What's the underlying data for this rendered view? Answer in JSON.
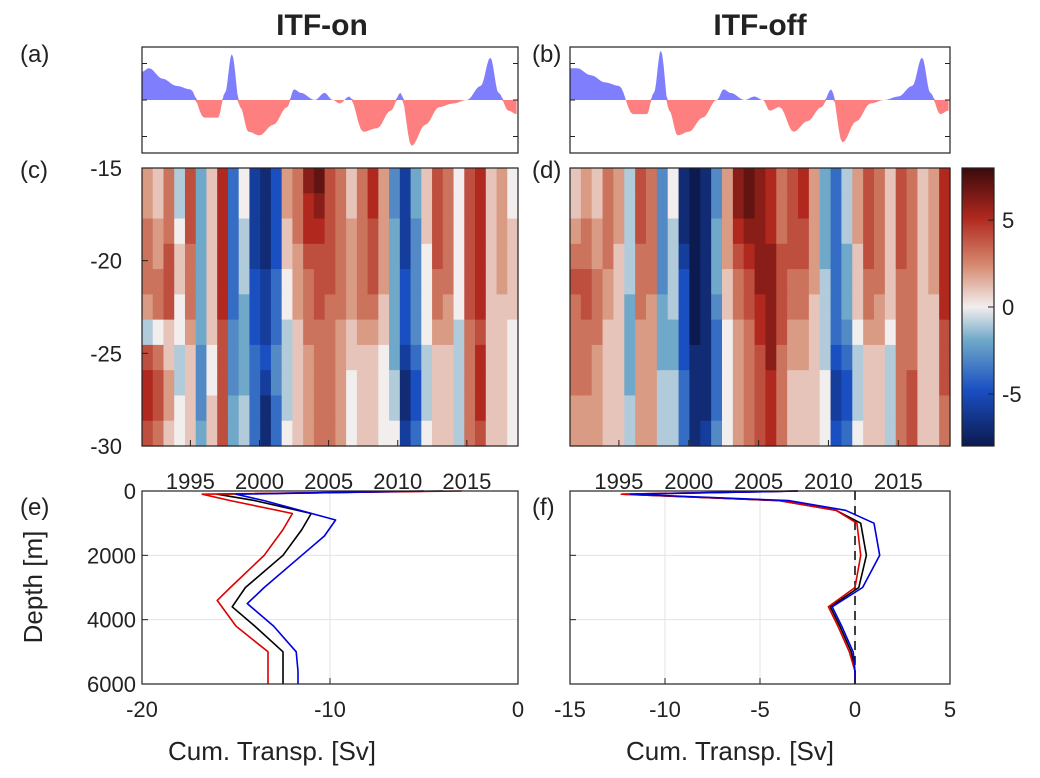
{
  "figure": {
    "titles": [
      "ITF-on",
      "ITF-off"
    ],
    "panel_labels": [
      "(a)",
      "(b)",
      "(c)",
      "(d)",
      "(e)",
      "(f)"
    ],
    "colors": {
      "positive_fill": "#7f7ffe",
      "negative_fill": "#fd7f7f",
      "series_black": "#000000",
      "series_red": "#dd0000",
      "series_blue": "#0000dd"
    }
  },
  "chart_data": [
    {
      "panel": "a",
      "type": "area",
      "title": "ITF-on",
      "x": [
        1991.5,
        1992,
        1993,
        1994,
        1995,
        1996,
        1997,
        1997.5,
        1998,
        1998.6,
        1999.2,
        2000,
        2001,
        2002,
        2002.5,
        2003,
        2004,
        2004.7,
        2005.3,
        2005.8,
        2006.5,
        2007.5,
        2008.5,
        2009.5,
        2010.2,
        2011,
        2012,
        2013,
        2014,
        2015,
        2016,
        2016.7,
        2017.3,
        2018,
        2018.6
      ],
      "values": [
        0.8,
        0.9,
        0.6,
        0.4,
        0.3,
        -0.5,
        -0.5,
        0.2,
        1.3,
        -0.2,
        -0.9,
        -1.0,
        -0.7,
        -0.2,
        0.3,
        0.2,
        0.0,
        0.2,
        0.0,
        -0.1,
        0.1,
        -0.9,
        -0.8,
        -0.3,
        0.2,
        -1.3,
        -0.7,
        -0.2,
        -0.1,
        0.0,
        0.4,
        1.2,
        0.2,
        -0.3,
        -0.4
      ],
      "ylim": [
        -1.5,
        1.5
      ],
      "xlim": [
        1991.5,
        2018.7
      ]
    },
    {
      "panel": "b",
      "type": "area",
      "title": "ITF-off",
      "x": [
        1991.5,
        1992,
        1993,
        1994,
        1995,
        1996,
        1997,
        1997.5,
        1998,
        1998.6,
        1999.2,
        2000,
        2001,
        2002,
        2002.5,
        2003,
        2004,
        2004.7,
        2005.3,
        2005.8,
        2006.5,
        2007.5,
        2008.5,
        2009.5,
        2010.2,
        2011,
        2012,
        2013,
        2014,
        2015,
        2016,
        2016.7,
        2017.3,
        2018,
        2018.6
      ],
      "values": [
        0.9,
        0.9,
        0.7,
        0.5,
        0.4,
        -0.4,
        -0.4,
        0.2,
        1.4,
        -0.3,
        -1.0,
        -0.9,
        -0.5,
        0.0,
        0.3,
        0.2,
        0.0,
        0.1,
        0.0,
        -0.3,
        -0.2,
        -0.9,
        -0.6,
        -0.2,
        0.3,
        -1.2,
        -0.6,
        -0.1,
        0.0,
        0.1,
        0.4,
        1.2,
        0.2,
        -0.4,
        -0.3
      ],
      "ylim": [
        -1.5,
        1.5
      ],
      "xlim": [
        1991.5,
        2018.7
      ]
    },
    {
      "panel": "c",
      "type": "heatmap",
      "xlim": [
        1991.5,
        2018.7
      ],
      "ylim": [
        -30,
        -15
      ],
      "xticks": [
        1995,
        2000,
        2005,
        2010,
        2015
      ],
      "yticks": [
        -15,
        -20,
        -25,
        -30
      ],
      "x": [
        1991.5,
        1992.2,
        1993,
        1993.8,
        1994.6,
        1995.4,
        1996.2,
        1997,
        1997.8,
        1998.6,
        1999.4,
        2000.2,
        2001,
        2001.8,
        2002.6,
        2003.4,
        2004.2,
        2005,
        2005.8,
        2006.6,
        2007.4,
        2008.2,
        2009,
        2009.8,
        2010.6,
        2011.4,
        2012.2,
        2013,
        2013.8,
        2014.6,
        2015.4,
        2016.2,
        2017,
        2017.8,
        2018.6
      ],
      "y": [
        -15,
        -16.5,
        -18,
        -19.5,
        -21,
        -22.5,
        -24,
        -25.5,
        -27,
        -28.5,
        -30
      ],
      "z": [
        [
          2,
          1,
          3,
          -1,
          4,
          -2,
          1,
          5,
          -4,
          0,
          -6,
          -7,
          -5,
          2,
          3,
          6,
          7,
          4,
          3,
          1,
          3,
          5,
          2,
          -3,
          -6,
          -2,
          1,
          4,
          3,
          0,
          4,
          5,
          1,
          2,
          0
        ],
        [
          2,
          1,
          3,
          -1,
          4,
          -2,
          1,
          5,
          -4,
          0,
          -6,
          -7,
          -5,
          2,
          3,
          5,
          6,
          4,
          3,
          1,
          3,
          5,
          2,
          -3,
          -6,
          -2,
          1,
          4,
          3,
          0,
          4,
          5,
          1,
          2,
          0
        ],
        [
          3,
          2,
          3,
          0,
          4,
          -2,
          1,
          5,
          -4,
          -1,
          -6,
          -7,
          -5,
          1,
          3,
          5,
          5,
          4,
          3,
          2,
          3,
          4,
          2,
          -2,
          -6,
          -3,
          1,
          4,
          3,
          0,
          4,
          5,
          1,
          2,
          1
        ],
        [
          3,
          2,
          4,
          1,
          3,
          -2,
          1,
          5,
          -4,
          -1,
          -6,
          -7,
          -5,
          1,
          2,
          4,
          4,
          4,
          3,
          2,
          3,
          4,
          2,
          -2,
          -6,
          -3,
          0,
          4,
          3,
          0,
          4,
          5,
          1,
          2,
          1
        ],
        [
          3,
          3,
          4,
          1,
          3,
          -2,
          1,
          5,
          -4,
          -1,
          -5,
          -6,
          -4,
          0,
          2,
          3,
          4,
          4,
          3,
          2,
          3,
          4,
          2,
          -2,
          -5,
          -3,
          0,
          3,
          3,
          0,
          4,
          5,
          1,
          2,
          1
        ],
        [
          2,
          3,
          4,
          0,
          3,
          -2,
          1,
          5,
          -4,
          -2,
          -5,
          -6,
          -4,
          0,
          2,
          3,
          4,
          3,
          3,
          2,
          3,
          3,
          1,
          -2,
          -5,
          -3,
          0,
          3,
          2,
          0,
          4,
          5,
          1,
          1,
          1
        ],
        [
          -1,
          0,
          1,
          0,
          2,
          -2,
          1,
          4,
          -3,
          -2,
          -5,
          -6,
          -4,
          -1,
          1,
          3,
          3,
          3,
          2,
          1,
          2,
          2,
          1,
          -2,
          -5,
          -3,
          0,
          2,
          2,
          -1,
          3,
          4,
          1,
          1,
          0
        ],
        [
          4,
          3,
          1,
          -1,
          1,
          -3,
          0,
          4,
          -3,
          -2,
          -4,
          -5,
          -3,
          -1,
          1,
          2,
          3,
          3,
          2,
          1,
          1,
          1,
          0,
          -2,
          -6,
          -4,
          -1,
          1,
          1,
          -1,
          3,
          5,
          1,
          1,
          0
        ],
        [
          5,
          4,
          2,
          -1,
          1,
          -3,
          0,
          4,
          -3,
          -2,
          -4,
          -6,
          -3,
          -1,
          1,
          2,
          3,
          3,
          2,
          0,
          1,
          1,
          0,
          -1,
          -7,
          -5,
          -1,
          1,
          1,
          -1,
          3,
          5,
          1,
          1,
          0
        ],
        [
          5,
          4,
          2,
          0,
          1,
          -3,
          1,
          4,
          -2,
          -1,
          -4,
          -7,
          -4,
          -1,
          1,
          2,
          3,
          3,
          2,
          0,
          1,
          1,
          0,
          -1,
          -7,
          -5,
          -1,
          1,
          1,
          -1,
          3,
          5,
          1,
          1,
          0
        ],
        [
          4,
          3,
          1,
          0,
          1,
          -2,
          1,
          4,
          -2,
          -1,
          -4,
          -7,
          -4,
          0,
          1,
          2,
          3,
          3,
          2,
          0,
          1,
          1,
          0,
          0,
          -6,
          -4,
          0,
          1,
          1,
          -1,
          3,
          4,
          1,
          1,
          0
        ]
      ]
    },
    {
      "panel": "d",
      "type": "heatmap",
      "xlim": [
        1991.5,
        2018.7
      ],
      "ylim": [
        -30,
        -15
      ],
      "xticks": [
        1995,
        2000,
        2005,
        2010,
        2015
      ],
      "x": [
        1991.5,
        1992.2,
        1993,
        1993.8,
        1994.6,
        1995.4,
        1996.2,
        1997,
        1997.8,
        1998.6,
        1999.4,
        2000.2,
        2001,
        2001.8,
        2002.6,
        2003.4,
        2004.2,
        2005,
        2005.8,
        2006.6,
        2007.4,
        2008.2,
        2009,
        2009.8,
        2010.6,
        2011.4,
        2012.2,
        2013,
        2013.8,
        2014.6,
        2015.4,
        2016.2,
        2017,
        2017.8,
        2018.6
      ],
      "y": [
        -15,
        -16.5,
        -18,
        -19.5,
        -21,
        -22.5,
        -24,
        -25.5,
        -27,
        -28.5,
        -30
      ],
      "z": [
        [
          1,
          2,
          1,
          3,
          2,
          -1,
          4,
          3,
          -3,
          0,
          -7,
          -8,
          -7,
          -3,
          2,
          6,
          7,
          6,
          5,
          3,
          4,
          5,
          2,
          -2,
          -4,
          -1,
          2,
          4,
          3,
          1,
          4,
          3,
          1,
          2,
          5
        ],
        [
          1,
          2,
          1,
          3,
          2,
          -1,
          4,
          3,
          -3,
          0,
          -7,
          -8,
          -7,
          -3,
          2,
          6,
          7,
          6,
          5,
          3,
          4,
          5,
          2,
          -2,
          -4,
          -1,
          2,
          4,
          3,
          1,
          4,
          3,
          1,
          2,
          5
        ],
        [
          2,
          3,
          2,
          3,
          2,
          -1,
          4,
          3,
          -3,
          -1,
          -7,
          -8,
          -7,
          -2,
          2,
          5,
          6,
          6,
          5,
          3,
          4,
          4,
          2,
          -2,
          -4,
          -1,
          2,
          4,
          3,
          1,
          4,
          3,
          1,
          2,
          5
        ],
        [
          3,
          3,
          2,
          3,
          1,
          -1,
          3,
          3,
          -3,
          -1,
          -6,
          -8,
          -7,
          -2,
          2,
          4,
          5,
          6,
          6,
          4,
          4,
          4,
          2,
          -2,
          -4,
          -2,
          1,
          4,
          3,
          1,
          4,
          3,
          1,
          2,
          5
        ],
        [
          4,
          4,
          3,
          2,
          1,
          -1,
          3,
          3,
          -3,
          -1,
          -5,
          -8,
          -7,
          -2,
          1,
          3,
          4,
          6,
          6,
          4,
          3,
          3,
          2,
          -1,
          -4,
          -2,
          1,
          3,
          3,
          1,
          3,
          3,
          1,
          2,
          5
        ],
        [
          3,
          4,
          3,
          2,
          1,
          -2,
          3,
          2,
          -2,
          -1,
          -5,
          -8,
          -7,
          -3,
          1,
          3,
          4,
          5,
          6,
          4,
          3,
          3,
          1,
          -1,
          -4,
          -2,
          1,
          3,
          2,
          1,
          3,
          3,
          1,
          1,
          5
        ],
        [
          3,
          3,
          3,
          1,
          1,
          -2,
          2,
          2,
          -2,
          -2,
          -5,
          -8,
          -7,
          -4,
          0,
          2,
          3,
          5,
          6,
          4,
          2,
          2,
          1,
          -1,
          -4,
          -3,
          0,
          2,
          2,
          0,
          3,
          3,
          1,
          1,
          4
        ],
        [
          3,
          3,
          2,
          1,
          1,
          -2,
          2,
          2,
          -2,
          -2,
          -5,
          -7,
          -7,
          -4,
          0,
          2,
          3,
          4,
          6,
          3,
          2,
          2,
          1,
          -1,
          -5,
          -4,
          -1,
          1,
          1,
          -1,
          3,
          3,
          1,
          1,
          4
        ],
        [
          3,
          3,
          2,
          1,
          1,
          -2,
          2,
          2,
          -1,
          -1,
          -4,
          -7,
          -7,
          -4,
          0,
          2,
          3,
          4,
          5,
          3,
          1,
          1,
          1,
          0,
          -6,
          -5,
          -1,
          1,
          1,
          -1,
          3,
          4,
          1,
          1,
          4
        ],
        [
          2,
          2,
          2,
          1,
          1,
          -1,
          2,
          2,
          -1,
          -1,
          -4,
          -7,
          -7,
          -4,
          0,
          2,
          3,
          4,
          5,
          3,
          1,
          1,
          1,
          0,
          -6,
          -5,
          -1,
          1,
          1,
          -1,
          3,
          4,
          1,
          1,
          3
        ],
        [
          2,
          2,
          2,
          1,
          1,
          -1,
          2,
          2,
          -1,
          -1,
          -4,
          -7,
          -6,
          -3,
          0,
          2,
          3,
          4,
          5,
          3,
          1,
          1,
          1,
          0,
          -5,
          -4,
          0,
          1,
          1,
          -1,
          3,
          4,
          1,
          1,
          3
        ]
      ]
    },
    {
      "panel": "colorbar",
      "type": "heatmap",
      "range": [
        -8,
        8
      ],
      "ticks": [
        5,
        0,
        -5
      ]
    },
    {
      "panel": "e",
      "type": "line",
      "title": "",
      "xlabel": "Cum. Transp. [Sv]",
      "ylabel": "Depth [m]",
      "xlim": [
        -20,
        0
      ],
      "ylim": [
        0,
        6000
      ],
      "xticks": [
        -20,
        -10,
        0
      ],
      "yticks": [
        0,
        2000,
        4000,
        6000
      ],
      "grid": true,
      "series": [
        {
          "color": "#000000",
          "x": [
            -4,
            -16,
            -14,
            -11,
            -11.5,
            -12.5,
            -14.5,
            -15.2,
            -14,
            -12.5,
            -12.5,
            -12.5
          ],
          "y": [
            0,
            100,
            300,
            700,
            1200,
            2000,
            3000,
            3600,
            4200,
            5000,
            5600,
            6000
          ]
        },
        {
          "color": "#dd0000",
          "x": [
            -3,
            -16.8,
            -15.3,
            -12,
            -12.5,
            -13.5,
            -15.3,
            -16,
            -15,
            -13.3,
            -13.3,
            -13.3
          ],
          "y": [
            0,
            100,
            300,
            700,
            1200,
            2000,
            3000,
            3400,
            4200,
            5000,
            5600,
            6000
          ]
        },
        {
          "color": "#0000dd",
          "x": [
            -5,
            -15,
            -13.5,
            -9.7,
            -10.3,
            -11.5,
            -13.5,
            -14.4,
            -13,
            -11.8,
            -11.7,
            -11.7
          ],
          "y": [
            0,
            100,
            300,
            900,
            1400,
            2000,
            3000,
            3500,
            4200,
            5000,
            5600,
            6000
          ]
        }
      ]
    },
    {
      "panel": "f",
      "type": "line",
      "title": "",
      "xlabel": "Cum. Transp. [Sv]",
      "xlim": [
        -15,
        5
      ],
      "ylim": [
        0,
        6000
      ],
      "xticks": [
        -15,
        -10,
        -5,
        0,
        5
      ],
      "yticks": [
        0,
        2000,
        4000,
        6000
      ],
      "grid": true,
      "series": [
        {
          "color": "#000000",
          "x": [
            -3,
            -12.2,
            -4,
            -1,
            0.3,
            0.6,
            0.2,
            -1.3,
            -0.8,
            -0.2,
            0,
            0
          ],
          "y": [
            0,
            100,
            300,
            600,
            1000,
            2000,
            3000,
            3600,
            4200,
            5000,
            5600,
            6000
          ]
        },
        {
          "color": "#dd0000",
          "x": [
            -3,
            -12.3,
            -4,
            -1,
            0.1,
            0.3,
            0,
            -1.4,
            -0.9,
            -0.3,
            0,
            0
          ],
          "y": [
            0,
            100,
            300,
            600,
            1000,
            2000,
            3000,
            3600,
            4200,
            5000,
            5600,
            6000
          ]
        },
        {
          "color": "#0000dd",
          "x": [
            -3,
            -11.8,
            -3.5,
            -0.5,
            1,
            1.3,
            0.4,
            -1.2,
            -0.7,
            -0.1,
            0,
            0
          ],
          "y": [
            0,
            100,
            300,
            600,
            1000,
            2000,
            3000,
            3600,
            4200,
            5000,
            5600,
            6000
          ]
        }
      ],
      "reference_line": {
        "x": 0,
        "style": "dashed"
      }
    }
  ]
}
